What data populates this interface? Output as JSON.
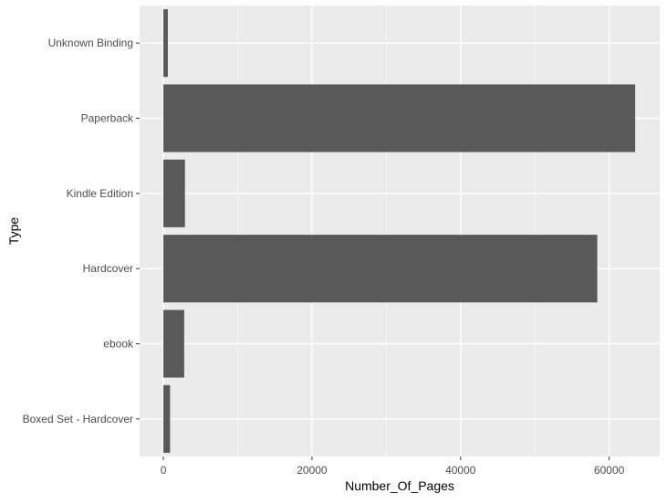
{
  "chart_data": {
    "type": "bar",
    "orientation": "horizontal",
    "xlabel": "Number_Of_Pages",
    "ylabel": "Type",
    "categories": [
      "Boxed Set - Hardcover",
      "ebook",
      "Hardcover",
      "Kindle Edition",
      "Paperback",
      "Unknown Binding"
    ],
    "values": [
      900,
      2800,
      58400,
      2900,
      63500,
      600
    ],
    "xlim": [
      -3200,
      66800
    ],
    "xticks": [
      0,
      20000,
      40000,
      60000
    ],
    "xtick_labels": [
      "0",
      "20000",
      "40000",
      "60000"
    ],
    "grid": true,
    "legend": "none",
    "colors": {
      "bar": "#595959",
      "panel": "#ebebeb",
      "grid_major": "#ffffff",
      "grid_minor": "#f5f5f5"
    }
  }
}
